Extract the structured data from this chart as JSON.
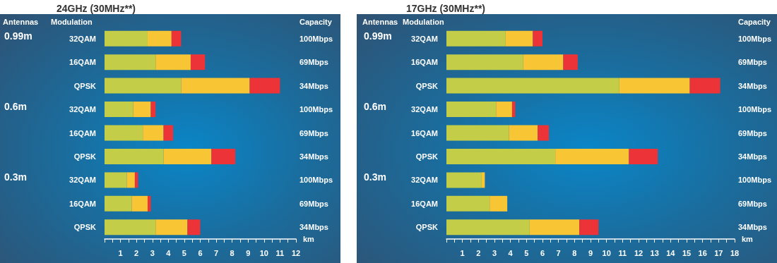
{
  "chart_data": [
    {
      "type": "bar",
      "orientation": "horizontal",
      "stacked": true,
      "title": "24GHz (30MHz**)",
      "xlabel": "km",
      "ylabel": "Modulation",
      "categories": [
        "32QAM",
        "16QAM",
        "QPSK",
        "32QAM",
        "16QAM",
        "QPSK",
        "32QAM",
        "16QAM",
        "QPSK"
      ],
      "series": [
        {
          "color": "#c4cd47",
          "values": [
            2.7,
            3.2,
            4.8,
            1.8,
            2.4,
            3.7,
            1.4,
            1.7,
            3.2
          ]
        },
        {
          "color": "#f8c535",
          "values": [
            1.5,
            2.2,
            4.3,
            1.1,
            1.3,
            3.0,
            0.5,
            1.0,
            2.0
          ]
        },
        {
          "color": "#ec3338",
          "values": [
            0.6,
            0.9,
            1.9,
            0.3,
            0.6,
            1.5,
            0.2,
            0.2,
            0.8
          ]
        }
      ],
      "xlim": [
        0,
        12
      ],
      "xticks": [
        {
          "value": 0,
          "label": null
        },
        {
          "value": 0.5,
          "label": null
        },
        1,
        {
          "value": 1.5,
          "label": null
        },
        2,
        {
          "value": 2.5,
          "label": null
        },
        3,
        {
          "value": 3.5,
          "label": null
        },
        4,
        {
          "value": 4.5,
          "label": null
        },
        5,
        {
          "value": 5.5,
          "label": null
        },
        6,
        {
          "value": 6.5,
          "label": null
        },
        7,
        {
          "value": 7.5,
          "label": null
        },
        8,
        {
          "value": 8.5,
          "label": null
        },
        9,
        {
          "value": 9.5,
          "label": null
        },
        10,
        {
          "value": 10.5,
          "label": null
        },
        11,
        {
          "value": 11.5,
          "label": null
        },
        12
      ],
      "annotations": [
        "Antennas",
        "Capacity",
        "0.99m",
        "0.6m",
        "0.3m",
        "100Mbps",
        "69Mbps",
        "34Mbps",
        "100Mbps",
        "69Mbps",
        "34Mbps",
        "100Mbps",
        "69Mbps",
        "34Mbps"
      ],
      "grid": false
    },
    {
      "type": "bar",
      "orientation": "horizontal",
      "stacked": true,
      "title": "17GHz (30MHz**)",
      "xlabel": "km",
      "ylabel": "Modulation",
      "categories": [
        "32QAM",
        "16QAM",
        "QPSK",
        "32QAM",
        "16QAM",
        "QPSK",
        "32QAM",
        "16QAM",
        "QPSK"
      ],
      "series": [
        {
          "color": "#c4cd47",
          "values": [
            3.7,
            4.8,
            10.8,
            3.1,
            3.9,
            6.8,
            2.2,
            2.7,
            5.2
          ]
        },
        {
          "color": "#f8c535",
          "values": [
            1.7,
            2.5,
            4.4,
            1.0,
            1.8,
            4.6,
            0.2,
            1.1,
            3.1
          ]
        },
        {
          "color": "#ec3338",
          "values": [
            0.6,
            0.9,
            1.9,
            0.2,
            0.7,
            1.8,
            null,
            null,
            1.2
          ]
        }
      ],
      "xlim": [
        0,
        18
      ],
      "xticks": [
        {
          "value": 0,
          "label": null
        },
        {
          "value": 0.5,
          "label": null
        },
        1,
        {
          "value": 1.5,
          "label": null
        },
        2,
        {
          "value": 2.5,
          "label": null
        },
        3,
        {
          "value": 3.5,
          "label": null
        },
        4,
        {
          "value": 4.5,
          "label": null
        },
        5,
        {
          "value": 5.5,
          "label": null
        },
        6,
        {
          "value": 6.5,
          "label": null
        },
        7,
        {
          "value": 7.5,
          "label": null
        },
        8,
        {
          "value": 8.5,
          "label": null
        },
        9,
        {
          "value": 9.5,
          "label": null
        },
        10,
        {
          "value": 10.5,
          "label": null
        },
        11,
        {
          "value": 11.5,
          "label": null
        },
        12,
        {
          "value": 12.5,
          "label": null
        },
        13,
        {
          "value": 13.5,
          "label": null
        },
        14,
        {
          "value": 14.5,
          "label": null
        },
        15,
        {
          "value": 15.5,
          "label": null
        },
        16,
        {
          "value": 16.5,
          "label": null
        },
        17,
        {
          "value": 17.5,
          "label": null
        },
        18
      ],
      "annotations": [
        "Antennas",
        "Capacity",
        "0.99m",
        "0.6m",
        "0.3m",
        "100Mbps",
        "69Mbps",
        "34Mbps",
        "100Mbps",
        "69Mbps",
        "34Mbps",
        "100Mbps",
        "69Mbps",
        "34Mbps"
      ],
      "grid": false
    }
  ]
}
